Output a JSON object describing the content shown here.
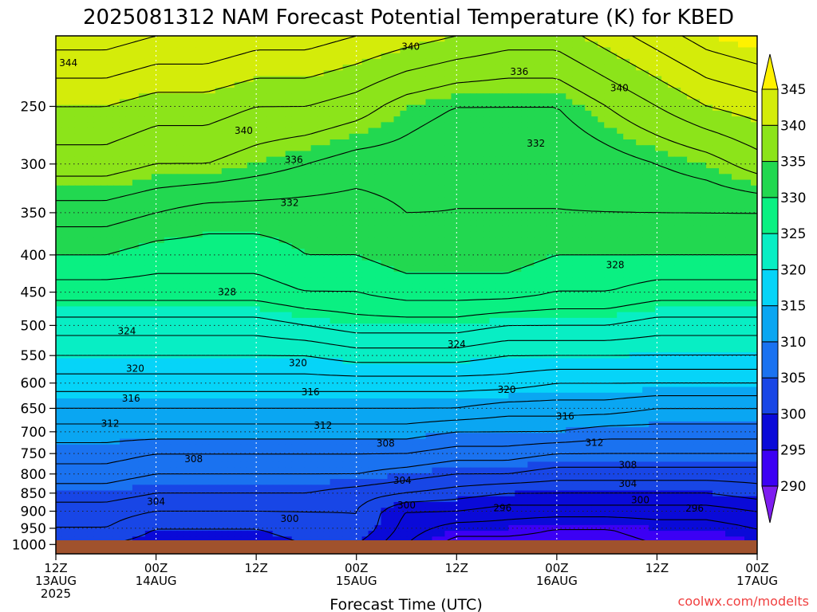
{
  "chart_data": {
    "type": "heatmap",
    "title": "2025081312 NAM Forecast Potential Temperature (K) for KBED",
    "xlabel": "Forecast Time (UTC)",
    "ylabel": "",
    "variable": "Potential Temperature (K)",
    "y_axis": {
      "scale": "log-pressure",
      "range": [
        1030,
        200
      ],
      "tick_labels": [
        "250",
        "300",
        "350",
        "400",
        "450",
        "500",
        "550",
        "600",
        "650",
        "700",
        "750",
        "800",
        "850",
        "900",
        "950",
        "1000"
      ],
      "tick_values": [
        250,
        300,
        350,
        400,
        450,
        500,
        550,
        600,
        650,
        700,
        750,
        800,
        850,
        900,
        950,
        1000
      ]
    },
    "x_axis": {
      "range_hours": [
        0,
        84
      ],
      "ticks": [
        {
          "hour": 0,
          "line1": "12Z",
          "line2": "13AUG",
          "line3": "2025"
        },
        {
          "hour": 12,
          "line1": "00Z",
          "line2": "14AUG",
          "line3": ""
        },
        {
          "hour": 24,
          "line1": "12Z",
          "line2": "",
          "line3": ""
        },
        {
          "hour": 36,
          "line1": "00Z",
          "line2": "15AUG",
          "line3": ""
        },
        {
          "hour": 48,
          "line1": "12Z",
          "line2": "",
          "line3": ""
        },
        {
          "hour": 60,
          "line1": "00Z",
          "line2": "16AUG",
          "line3": ""
        },
        {
          "hour": 72,
          "line1": "12Z",
          "line2": "",
          "line3": ""
        },
        {
          "hour": 84,
          "line1": "00Z",
          "line2": "17AUG",
          "line3": ""
        }
      ]
    },
    "grid": true,
    "colorbar": {
      "levels": [
        290,
        295,
        300,
        305,
        310,
        315,
        320,
        325,
        330,
        335,
        340,
        345
      ],
      "labels": [
        "290",
        "295",
        "300",
        "305",
        "310",
        "315",
        "320",
        "325",
        "330",
        "335",
        "340",
        "345"
      ],
      "colors": [
        "#7e1df0",
        "#3c00f4",
        "#0a0ad8",
        "#1846e6",
        "#1a72f0",
        "#0aa6f2",
        "#06d4f8",
        "#08eec4",
        "#0af082",
        "#22d850",
        "#8ce41a",
        "#d4ec0a",
        "#fff200"
      ]
    },
    "pressure_levels": [
      1000,
      950,
      900,
      850,
      800,
      750,
      700,
      650,
      600,
      550,
      500,
      450,
      400,
      350,
      300,
      250,
      200
    ],
    "forecast_hours": [
      0,
      6,
      12,
      18,
      24,
      30,
      36,
      42,
      48,
      54,
      60,
      66,
      72,
      78,
      84
    ],
    "theta": [
      [
        300,
        300,
        299,
        299,
        299,
        300,
        300,
        296,
        293,
        293,
        293,
        293,
        294,
        294,
        295
      ],
      [
        302,
        302,
        300,
        300,
        300,
        301,
        302,
        297,
        295,
        295,
        294,
        294,
        295,
        295,
        296
      ],
      [
        303,
        303,
        302,
        302,
        302,
        302,
        302,
        298,
        298,
        297,
        297,
        297,
        297,
        297,
        298
      ],
      [
        305,
        305,
        304,
        304,
        304,
        304,
        303,
        302,
        301,
        300,
        300,
        300,
        300,
        300,
        301
      ],
      [
        307,
        307,
        306,
        306,
        306,
        306,
        306,
        305,
        304,
        304,
        303,
        303,
        303,
        303,
        303
      ],
      [
        309,
        309,
        308,
        308,
        308,
        308,
        308,
        308,
        307,
        307,
        306,
        306,
        306,
        306,
        306
      ],
      [
        311,
        311,
        311,
        311,
        311,
        311,
        311,
        311,
        310,
        310,
        310,
        309,
        309,
        309,
        309
      ],
      [
        314,
        314,
        314,
        314,
        314,
        314,
        314,
        314,
        314,
        313,
        313,
        313,
        312,
        312,
        312
      ],
      [
        317,
        317,
        317,
        317,
        317,
        317,
        317,
        317,
        317,
        317,
        316,
        316,
        316,
        316,
        316
      ],
      [
        320,
        320,
        320,
        320,
        320,
        320,
        321,
        321,
        321,
        320,
        320,
        320,
        320,
        320,
        320
      ],
      [
        323,
        323,
        323,
        323,
        323,
        324,
        325,
        325,
        325,
        324,
        324,
        324,
        323,
        323,
        323
      ],
      [
        327,
        327,
        327,
        327,
        327,
        328,
        328,
        329,
        329,
        329,
        328,
        328,
        327,
        327,
        327
      ],
      [
        330,
        330,
        329,
        329,
        329,
        330,
        330,
        331,
        331,
        331,
        330,
        330,
        330,
        330,
        330
      ],
      [
        333,
        333,
        332,
        331,
        331,
        331,
        331,
        332,
        332,
        332,
        332,
        332,
        332,
        332,
        332
      ],
      [
        337,
        337,
        336,
        336,
        335,
        334,
        333,
        333,
        332,
        332,
        332,
        333,
        334,
        335,
        337
      ],
      [
        340,
        340,
        339,
        339,
        338,
        338,
        337,
        335,
        334,
        334,
        334,
        336,
        338,
        340,
        341
      ],
      [
        345,
        345,
        344,
        344,
        343,
        343,
        342,
        341,
        340,
        339,
        339,
        341,
        343,
        345,
        346
      ]
    ],
    "contour_interval": 2,
    "contour_labels": [
      {
        "text": "344",
        "hour": 1.5,
        "p": 218
      },
      {
        "text": "340",
        "hour": 42.5,
        "p": 207
      },
      {
        "text": "336",
        "hour": 55.5,
        "p": 224
      },
      {
        "text": "340",
        "hour": 67.5,
        "p": 236
      },
      {
        "text": "340",
        "hour": 22.5,
        "p": 270
      },
      {
        "text": "332",
        "hour": 57.5,
        "p": 281
      },
      {
        "text": "336",
        "hour": 28.5,
        "p": 296
      },
      {
        "text": "332",
        "hour": 28,
        "p": 339
      },
      {
        "text": "328",
        "hour": 67,
        "p": 413
      },
      {
        "text": "328",
        "hour": 20.5,
        "p": 450
      },
      {
        "text": "324",
        "hour": 8.5,
        "p": 509
      },
      {
        "text": "324",
        "hour": 48,
        "p": 531
      },
      {
        "text": "320",
        "hour": 9.5,
        "p": 573
      },
      {
        "text": "320",
        "hour": 29,
        "p": 563
      },
      {
        "text": "320",
        "hour": 54,
        "p": 613
      },
      {
        "text": "316",
        "hour": 9,
        "p": 630
      },
      {
        "text": "316",
        "hour": 30.5,
        "p": 617
      },
      {
        "text": "316",
        "hour": 61,
        "p": 667
      },
      {
        "text": "312",
        "hour": 6.5,
        "p": 682
      },
      {
        "text": "312",
        "hour": 32,
        "p": 686
      },
      {
        "text": "312",
        "hour": 64.5,
        "p": 725
      },
      {
        "text": "308",
        "hour": 16.5,
        "p": 763
      },
      {
        "text": "308",
        "hour": 39.5,
        "p": 726
      },
      {
        "text": "308",
        "hour": 68.5,
        "p": 778
      },
      {
        "text": "304",
        "hour": 41.5,
        "p": 817
      },
      {
        "text": "304",
        "hour": 68.5,
        "p": 825
      },
      {
        "text": "304",
        "hour": 12,
        "p": 873
      },
      {
        "text": "300",
        "hour": 28,
        "p": 922
      },
      {
        "text": "300",
        "hour": 42,
        "p": 883
      },
      {
        "text": "300",
        "hour": 70,
        "p": 869
      },
      {
        "text": "296",
        "hour": 53.5,
        "p": 891
      },
      {
        "text": "296",
        "hour": 76.5,
        "p": 892
      }
    ]
  },
  "credit": {
    "text": "coolwx.com/modelts",
    "color": "#f04040"
  },
  "terrain_color": "#a0522d"
}
